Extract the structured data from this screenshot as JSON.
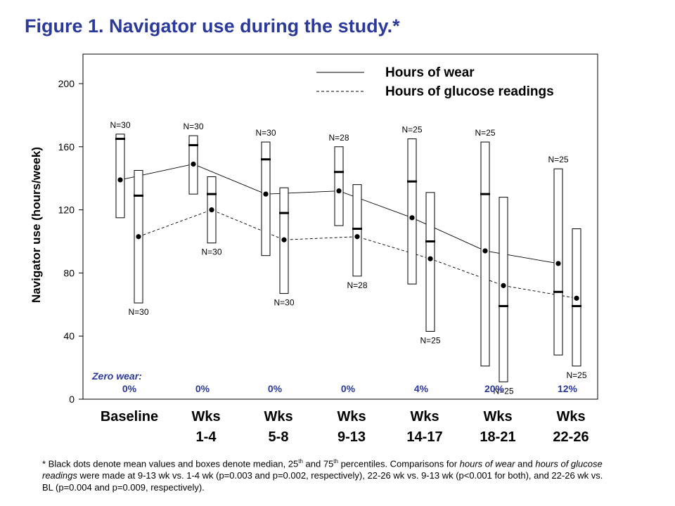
{
  "title": "Figure 1. Navigator use during the study.*",
  "colors": {
    "title": "#2b3a9a",
    "zero_wear": "#2b3a9a",
    "ink": "#000000"
  },
  "chart_data": {
    "type": "box",
    "ylabel": "Navigator use (hours/week)",
    "xlabel": "",
    "ylim": [
      0,
      200
    ],
    "yticks": [
      0,
      40,
      80,
      120,
      160,
      200
    ],
    "grid": false,
    "legend_position": "top-right",
    "categories": [
      [
        "Baseline",
        ""
      ],
      [
        "Wks",
        "1-4"
      ],
      [
        "Wks",
        "5-8"
      ],
      [
        "Wks",
        "9-13"
      ],
      [
        "Wks",
        "14-17"
      ],
      [
        "Wks",
        "18-21"
      ],
      [
        "Wks",
        "22-26"
      ]
    ],
    "series": [
      {
        "name": "Hours of wear",
        "line_style": "solid",
        "mean": [
          139,
          149,
          130,
          132,
          115,
          94,
          86
        ],
        "q1": [
          115,
          130,
          91,
          110,
          73,
          21,
          28
        ],
        "median": [
          165,
          161,
          152,
          144,
          138,
          130,
          68
        ],
        "q3": [
          168,
          167,
          163,
          160,
          165,
          163,
          146
        ],
        "n": [
          "N=30",
          "N=30",
          "N=30",
          "N=28",
          "N=25",
          "N=25",
          "N=25"
        ]
      },
      {
        "name": "Hours of glucose readings",
        "line_style": "dashed",
        "mean": [
          103,
          120,
          101,
          103,
          89,
          72,
          64
        ],
        "q1": [
          61,
          99,
          67,
          78,
          43,
          11,
          21
        ],
        "median": [
          129,
          130,
          118,
          108,
          100,
          59,
          59
        ],
        "q3": [
          145,
          141,
          134,
          136,
          131,
          128,
          108
        ],
        "n": [
          "N=30",
          "N=30",
          "N=30",
          "N=28",
          "N=25",
          "N=25",
          "N=25"
        ]
      }
    ],
    "zero_wear_label": "Zero wear:",
    "zero_wear": [
      "0%",
      "0%",
      "0%",
      "0%",
      "4%",
      "20%",
      "12%"
    ]
  },
  "footnote": {
    "p1": "* Black dots denote mean values and boxes denote median, 25",
    "sup1": "th",
    "p2": " and 75",
    "sup2": "th",
    "p3": " percentiles. Comparisons for ",
    "i1": "hours of wear",
    "p4": " and ",
    "i2": "hours of glucose readings",
    "p5": "  were made at 9-13 wk vs. 1-4 wk (p=0.003 and p=0.002, respectively), 22-26 wk vs. 9-13 wk (p<0.001 for both), and 22-26 wk vs. BL (p=0.004 and p=0.009, respectively)."
  }
}
